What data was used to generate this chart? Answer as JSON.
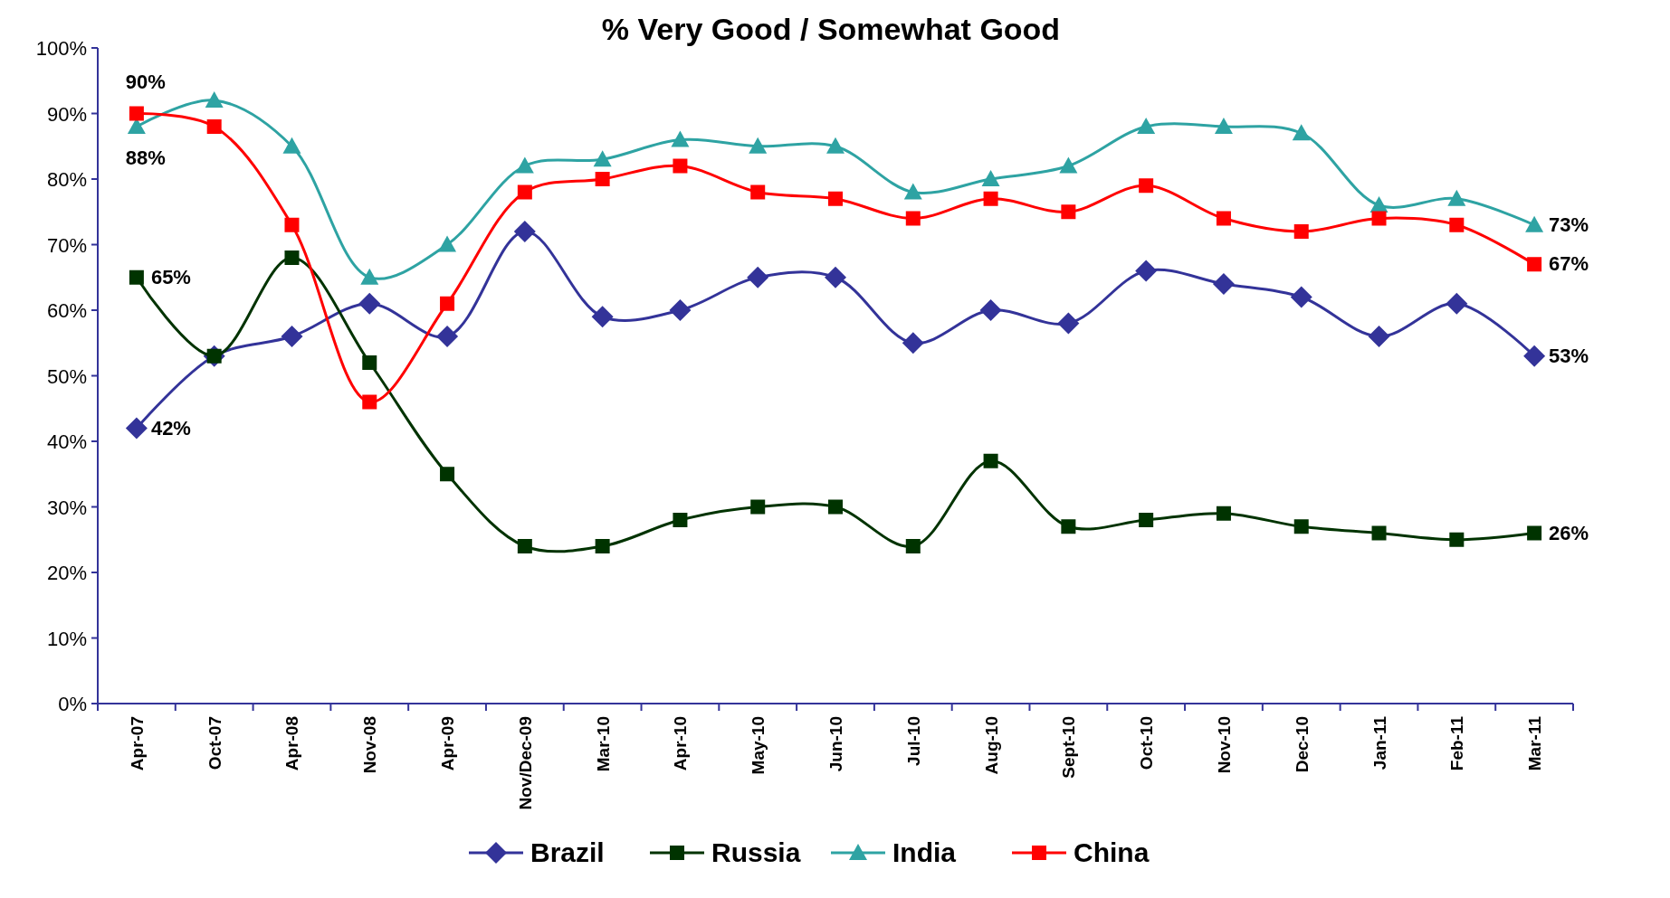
{
  "chart_data": {
    "type": "line",
    "title": "% Very Good / Somewhat Good",
    "categories": [
      "Apr-07",
      "Oct-07",
      "Apr-08",
      "Nov-08",
      "Apr-09",
      "Nov/Dec-09",
      "Mar-10",
      "Apr-10",
      "May-10",
      "Jun-10",
      "Jul-10",
      "Aug-10",
      "Sept-10",
      "Oct-10",
      "Nov-10",
      "Dec-10",
      "Jan-11",
      "Feb-11",
      "Mar-11"
    ],
    "series": [
      {
        "name": "Brazil",
        "color": "#333399",
        "marker": "diamond",
        "values": [
          42,
          53,
          56,
          61,
          56,
          72,
          59,
          60,
          65,
          65,
          55,
          60,
          58,
          66,
          64,
          62,
          56,
          61,
          53
        ],
        "value_labels": [
          "42%",
          null,
          null,
          null,
          null,
          null,
          null,
          null,
          null,
          null,
          null,
          null,
          null,
          null,
          null,
          null,
          null,
          null,
          "53%"
        ]
      },
      {
        "name": "Russia",
        "color": "#003300",
        "marker": "square",
        "values": [
          65,
          53,
          68,
          52,
          35,
          24,
          24,
          28,
          30,
          30,
          24,
          37,
          27,
          28,
          29,
          27,
          26,
          25,
          26
        ],
        "value_labels": [
          "65%",
          null,
          null,
          null,
          null,
          null,
          null,
          null,
          null,
          null,
          null,
          null,
          null,
          null,
          null,
          null,
          null,
          null,
          "26%"
        ]
      },
      {
        "name": "India",
        "color": "#2ea3a3",
        "marker": "triangle",
        "values": [
          88,
          92,
          85,
          65,
          70,
          82,
          83,
          86,
          85,
          85,
          78,
          80,
          82,
          88,
          88,
          87,
          76,
          77,
          73
        ],
        "value_labels": [
          "88%",
          null,
          null,
          null,
          null,
          null,
          null,
          null,
          null,
          null,
          null,
          null,
          null,
          null,
          null,
          null,
          null,
          null,
          "73%"
        ]
      },
      {
        "name": "China",
        "color": "#ff0000",
        "marker": "square",
        "values": [
          90,
          88,
          73,
          46,
          61,
          78,
          80,
          82,
          78,
          77,
          74,
          77,
          75,
          79,
          74,
          72,
          74,
          73,
          67
        ],
        "value_labels": [
          "90%",
          null,
          null,
          null,
          null,
          null,
          null,
          null,
          null,
          null,
          null,
          null,
          null,
          null,
          null,
          null,
          null,
          null,
          "67%"
        ]
      }
    ],
    "ylim": [
      0,
      100
    ],
    "yticks": [
      {
        "value": 0,
        "label": "0%"
      },
      {
        "value": 10,
        "label": "10%"
      },
      {
        "value": 20,
        "label": "20%"
      },
      {
        "value": 30,
        "label": "30%"
      },
      {
        "value": 40,
        "label": "40%"
      },
      {
        "value": 50,
        "label": "50%"
      },
      {
        "value": 60,
        "label": "60%"
      },
      {
        "value": 70,
        "label": "70%"
      },
      {
        "value": 80,
        "label": "80%"
      },
      {
        "value": 90,
        "label": "90%"
      },
      {
        "value": 100,
        "label": "100%"
      }
    ],
    "grid": false,
    "legend": "bottom"
  }
}
